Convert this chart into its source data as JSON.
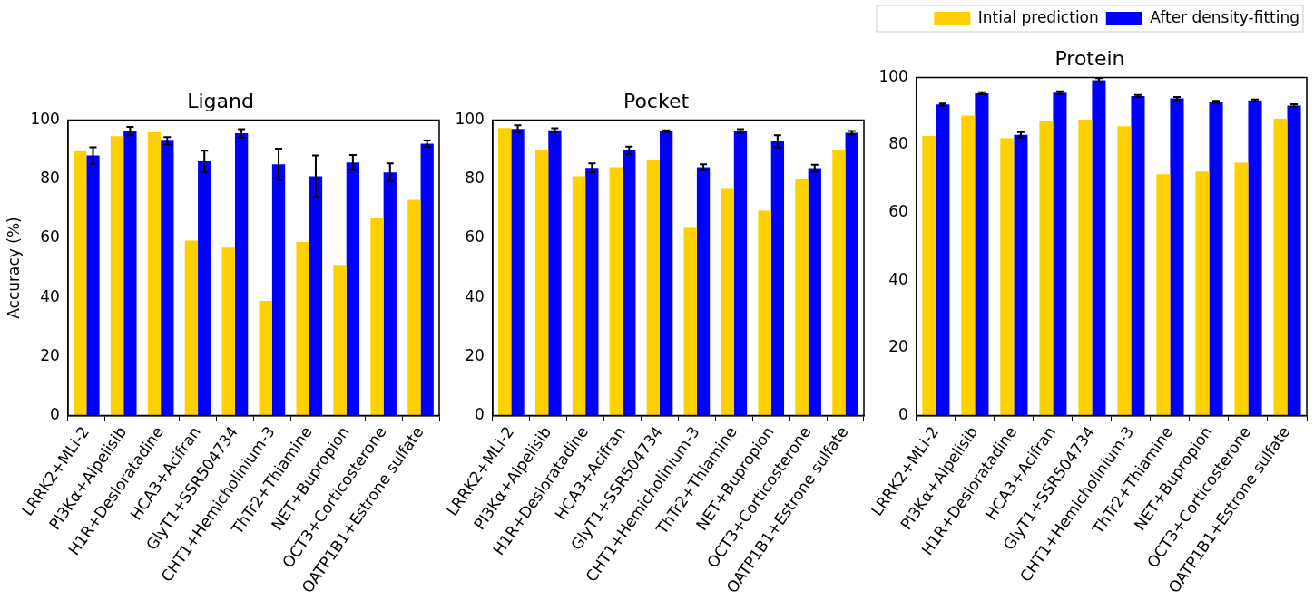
{
  "chart_data": [
    {
      "type": "bar",
      "title": "Ligand",
      "ylabel": "Accuracy (%)",
      "categories": [
        "LRRK2+MLi-2",
        "PI3Kα+Alpelisib",
        "H1R+Desloratadine",
        "HCA3+Acifran",
        "GlyT1+SSR504734",
        "CHT1+Hemicholinium-3",
        "ThTr2+Thiamine",
        "NET+Bupropion",
        "OCT3+Corticosterone",
        "OATP1B1+Estrone sulfate"
      ],
      "series": [
        {
          "color": "#ffd000",
          "values": [
            89.5,
            94.5,
            95.8,
            59.2,
            56.8,
            38.8,
            58.7,
            51,
            67,
            73
          ]
        },
        {
          "color": "#0000ff",
          "values": [
            88,
            96.3,
            93,
            86,
            95.5,
            85,
            81,
            85.6,
            82.3,
            92
          ],
          "errors": [
            2.8,
            1.4,
            1.2,
            3.6,
            1.4,
            5.3,
            7,
            2.6,
            3,
            1.1
          ]
        }
      ],
      "ylim": [
        0,
        100
      ],
      "yticks": [
        0,
        20,
        40,
        60,
        80,
        100
      ]
    },
    {
      "type": "bar",
      "title": "Pocket",
      "categories": [
        "LRRK2+MLi-2",
        "PI3Kα+Alpelisib",
        "H1R+Desloratadine",
        "HCA3+Acifran",
        "GlyT1+SSR504734",
        "CHT1+Hemicholinium-3",
        "ThTr2+Thiamine",
        "NET+Bupropion",
        "OCT3+Corticosterone",
        "OATP1B1+Estrone sulfate"
      ],
      "series": [
        {
          "color": "#ffd000",
          "values": [
            97.3,
            90,
            81,
            84,
            86.3,
            63.5,
            77,
            69.3,
            80,
            89.7
          ]
        },
        {
          "color": "#0000ff",
          "values": [
            97,
            96.5,
            83.8,
            89.7,
            96.2,
            84,
            96.2,
            92.8,
            83.7,
            95.7
          ],
          "errors": [
            1.2,
            0.7,
            1.5,
            1.3,
            0.3,
            1,
            0.7,
            2,
            1.2,
            0.6
          ]
        }
      ],
      "ylim": [
        0,
        100
      ],
      "yticks": [
        0,
        20,
        40,
        60,
        80,
        100
      ]
    },
    {
      "type": "bar",
      "title": "Protein",
      "categories": [
        "LRRK2+MLi-2",
        "PI3Kα+Alpelisib",
        "H1R+Desloratadine",
        "HCA3+Acifran",
        "GlyT1+SSR504734",
        "CHT1+Hemicholinium-3",
        "ThTr2+Thiamine",
        "NET+Bupropion",
        "OCT3+Corticosterone",
        "OATP1B1+Estrone sulfate"
      ],
      "series": [
        {
          "name": "Intial prediction",
          "color": "#ffd000",
          "values": [
            82.7,
            88.7,
            82,
            87.2,
            87.5,
            85.6,
            71.4,
            72.2,
            74.8,
            87.8
          ]
        },
        {
          "name": "After density-fitting",
          "color": "#0000ff",
          "values": [
            92,
            95.3,
            83,
            95.5,
            99.2,
            94.5,
            93.8,
            92.7,
            93.2,
            91.7
          ],
          "errors": [
            0.3,
            0.3,
            0.8,
            0.4,
            0.6,
            0.3,
            0.4,
            0.4,
            0.3,
            0.4
          ]
        }
      ],
      "ylim": [
        0,
        100
      ],
      "yticks": [
        0,
        20,
        40,
        60,
        80,
        100
      ],
      "legend": "top right"
    }
  ]
}
